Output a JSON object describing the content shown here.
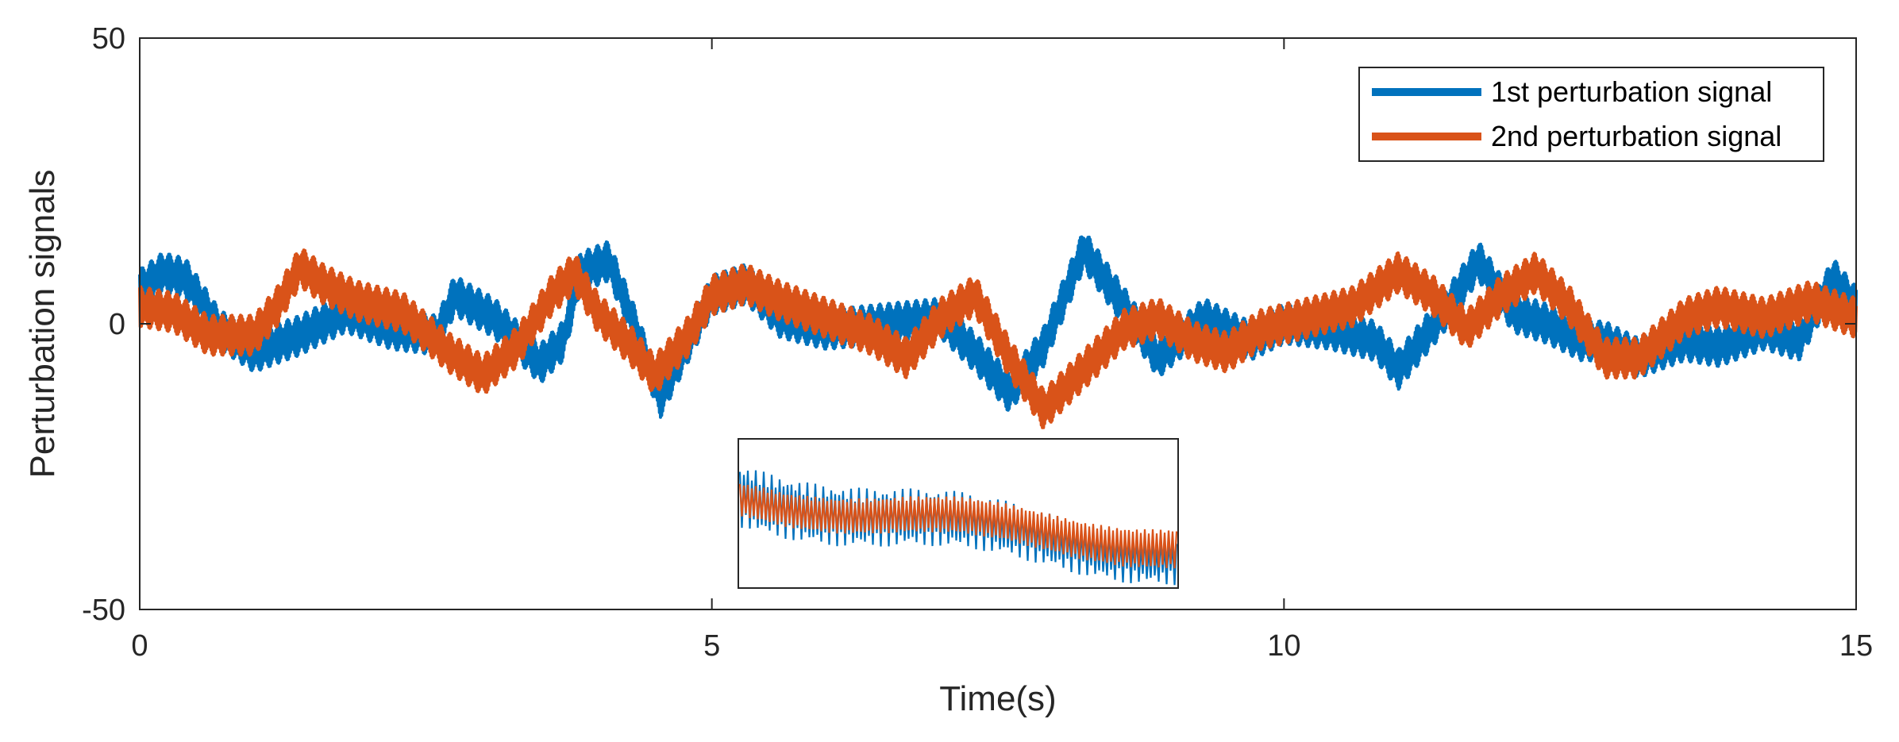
{
  "chart_data": {
    "type": "line",
    "title": "",
    "xlabel": "Time(s)",
    "ylabel": "Perturbation signals",
    "xlim": [
      0,
      15
    ],
    "ylim": [
      -50,
      50
    ],
    "xticks": [
      0,
      5,
      10,
      15
    ],
    "xtick_labels": [
      "0",
      "5",
      "10",
      "15"
    ],
    "yticks": [
      -50,
      0,
      50
    ],
    "ytick_labels": [
      "-50",
      "0",
      "50"
    ],
    "grid": false,
    "legend_position": "top-right",
    "series": [
      {
        "name": "1st perturbation signal",
        "color": "#0072BD",
        "envelope_t": [
          0,
          0.2,
          0.4,
          0.7,
          1.0,
          1.4,
          1.8,
          2.2,
          2.6,
          2.75,
          3.1,
          3.5,
          3.7,
          3.85,
          4.1,
          4.3,
          4.55,
          4.8,
          5.0,
          5.3,
          5.6,
          6.0,
          6.5,
          7.0,
          7.3,
          7.6,
          7.9,
          8.25,
          8.6,
          8.9,
          9.3,
          9.7,
          10.0,
          10.4,
          10.8,
          11.0,
          11.4,
          11.7,
          12.0,
          12.3,
          12.6,
          12.8,
          13.1,
          13.5,
          13.8,
          14.2,
          14.5,
          14.8,
          15.0
        ],
        "envelope_center": [
          6,
          9,
          8,
          -1,
          -5,
          -2,
          2,
          -1,
          -2,
          5,
          1,
          -7,
          -3,
          9,
          11,
          1,
          -13,
          -3,
          5,
          7,
          1,
          -1,
          0,
          1,
          -5,
          -12,
          -4,
          13,
          3,
          -6,
          1,
          -3,
          0,
          -1,
          -3,
          -8,
          2,
          11,
          2,
          0,
          -3,
          -3,
          -6,
          -3,
          -4,
          -1,
          -3,
          8,
          3
        ],
        "amplitude": 3.5
      },
      {
        "name": "2nd perturbation signal",
        "color": "#D95319",
        "envelope_t": [
          0,
          0.3,
          0.6,
          1.0,
          1.2,
          1.4,
          1.6,
          1.9,
          2.3,
          2.7,
          3.0,
          3.3,
          3.6,
          3.8,
          4.0,
          4.3,
          4.5,
          4.8,
          5.0,
          5.3,
          5.6,
          6.0,
          6.4,
          6.7,
          7.0,
          7.3,
          7.6,
          7.9,
          8.2,
          8.6,
          8.9,
          9.2,
          9.5,
          9.8,
          10.2,
          10.6,
          11.0,
          11.3,
          11.6,
          11.9,
          12.2,
          12.5,
          12.8,
          13.1,
          13.5,
          13.8,
          14.2,
          14.6,
          15.0
        ],
        "envelope_center": [
          3,
          2,
          -2,
          -2,
          3,
          10,
          7,
          4,
          2,
          -5,
          -9,
          -4,
          5,
          9,
          2,
          -4,
          -9,
          -2,
          5,
          7,
          4,
          1,
          -2,
          -6,
          1,
          5,
          -6,
          -15,
          -9,
          -1,
          1,
          -3,
          -5,
          -1,
          1,
          3,
          9,
          5,
          -1,
          5,
          9,
          3,
          -6,
          -6,
          1,
          3,
          1,
          4,
          1
        ],
        "amplitude": 3.5
      }
    ],
    "inset": {
      "description_free": true,
      "x_range": [
        5.2,
        9.0
      ],
      "series": [
        {
          "name": "1st perturbation signal",
          "color": "#0072BD"
        },
        {
          "name": "2nd perturbation signal",
          "color": "#D95319"
        }
      ]
    }
  }
}
